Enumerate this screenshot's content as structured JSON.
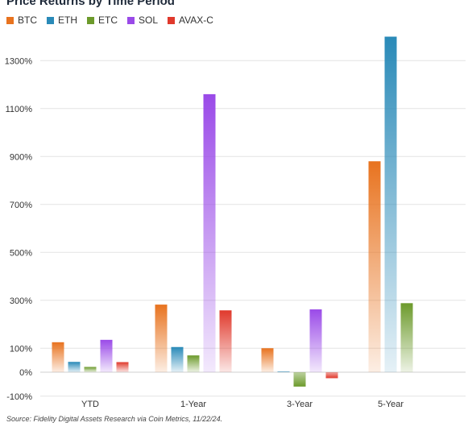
{
  "chart_data": {
    "type": "bar",
    "title": "Price Returns by Time Period",
    "categories": [
      "YTD",
      "1-Year",
      "3-Year",
      "5-Year"
    ],
    "series": [
      {
        "name": "BTC",
        "color": "#e8731f",
        "values": [
          125,
          282,
          100,
          880
        ]
      },
      {
        "name": "ETH",
        "color": "#2a8ab8",
        "values": [
          43,
          105,
          3,
          1400
        ]
      },
      {
        "name": "ETC",
        "color": "#6c9a2b",
        "values": [
          22,
          70,
          -60,
          288
        ]
      },
      {
        "name": "SOL",
        "color": "#9a4ae8",
        "values": [
          135,
          1160,
          262,
          null
        ]
      },
      {
        "name": "AVAX-C",
        "color": "#e0392c",
        "values": [
          42,
          258,
          -25,
          null
        ]
      }
    ],
    "yticks": [
      -100,
      0,
      100,
      300,
      500,
      700,
      900,
      1100,
      1300
    ],
    "ytick_labels": [
      "-100%",
      "0%",
      "100%",
      "300%",
      "500%",
      "700%",
      "900%",
      "1100%",
      "1300%"
    ],
    "ylim": [
      -100,
      1400
    ],
    "grid": true,
    "legend_position": "top-left",
    "source": "Source: Fidelity Digital Assets Research via Coin Metrics, 11/22/24."
  }
}
